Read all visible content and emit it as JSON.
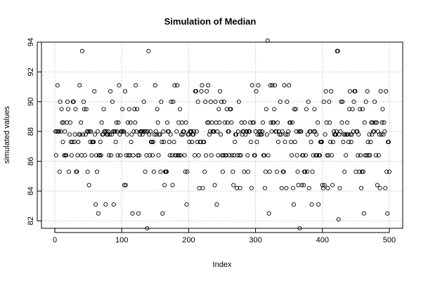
{
  "chart_data": {
    "type": "scatter",
    "title": "Simulation of Median",
    "xlabel": "Index",
    "ylabel": "simulated values",
    "xlim": [
      -20,
      520
    ],
    "ylim": [
      81.5,
      94.0
    ],
    "x_ticks": [
      0,
      100,
      200,
      300,
      400,
      500
    ],
    "y_ticks": [
      82,
      84,
      86,
      88,
      90,
      92,
      94
    ],
    "grid": true,
    "grid_style": "dotted",
    "n_points": 500,
    "marker": "open-circle",
    "colors": {
      "points": "#000000",
      "grid": "#b0b0b0",
      "axes": "#000000",
      "background": "#ffffff"
    },
    "y_levels": [
      81.5,
      82.1,
      82.5,
      83.1,
      84.2,
      84.4,
      85.3,
      86.4,
      87.3,
      87.8,
      88.0,
      88.6,
      89.5,
      90.0,
      90.7,
      91.1,
      93.4,
      94.1
    ],
    "outliers": [
      {
        "x": 138,
        "y": 81.5
      },
      {
        "x": 366,
        "y": 81.5
      },
      {
        "x": 424,
        "y": 82.1
      },
      {
        "x": 318,
        "y": 94.1
      },
      {
        "x": 41,
        "y": 93.4
      },
      {
        "x": 140,
        "y": 93.4
      },
      {
        "x": 422,
        "y": 93.4
      },
      {
        "x": 423,
        "y": 93.4
      }
    ]
  }
}
